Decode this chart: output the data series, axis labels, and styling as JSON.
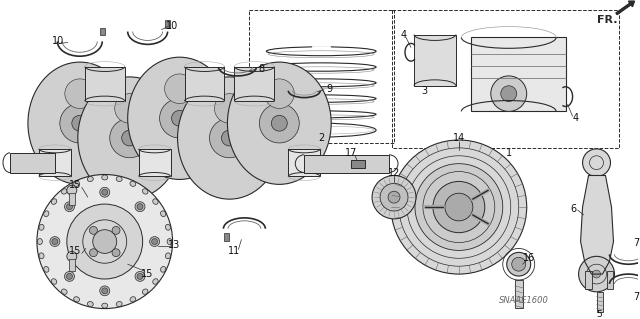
{
  "background_color": "#ffffff",
  "line_color": "#2a2a2a",
  "label_color": "#111111",
  "watermark": "SNAAE1600",
  "fr_label": "FR.",
  "fig_width": 6.4,
  "fig_height": 3.19,
  "dpi": 100
}
